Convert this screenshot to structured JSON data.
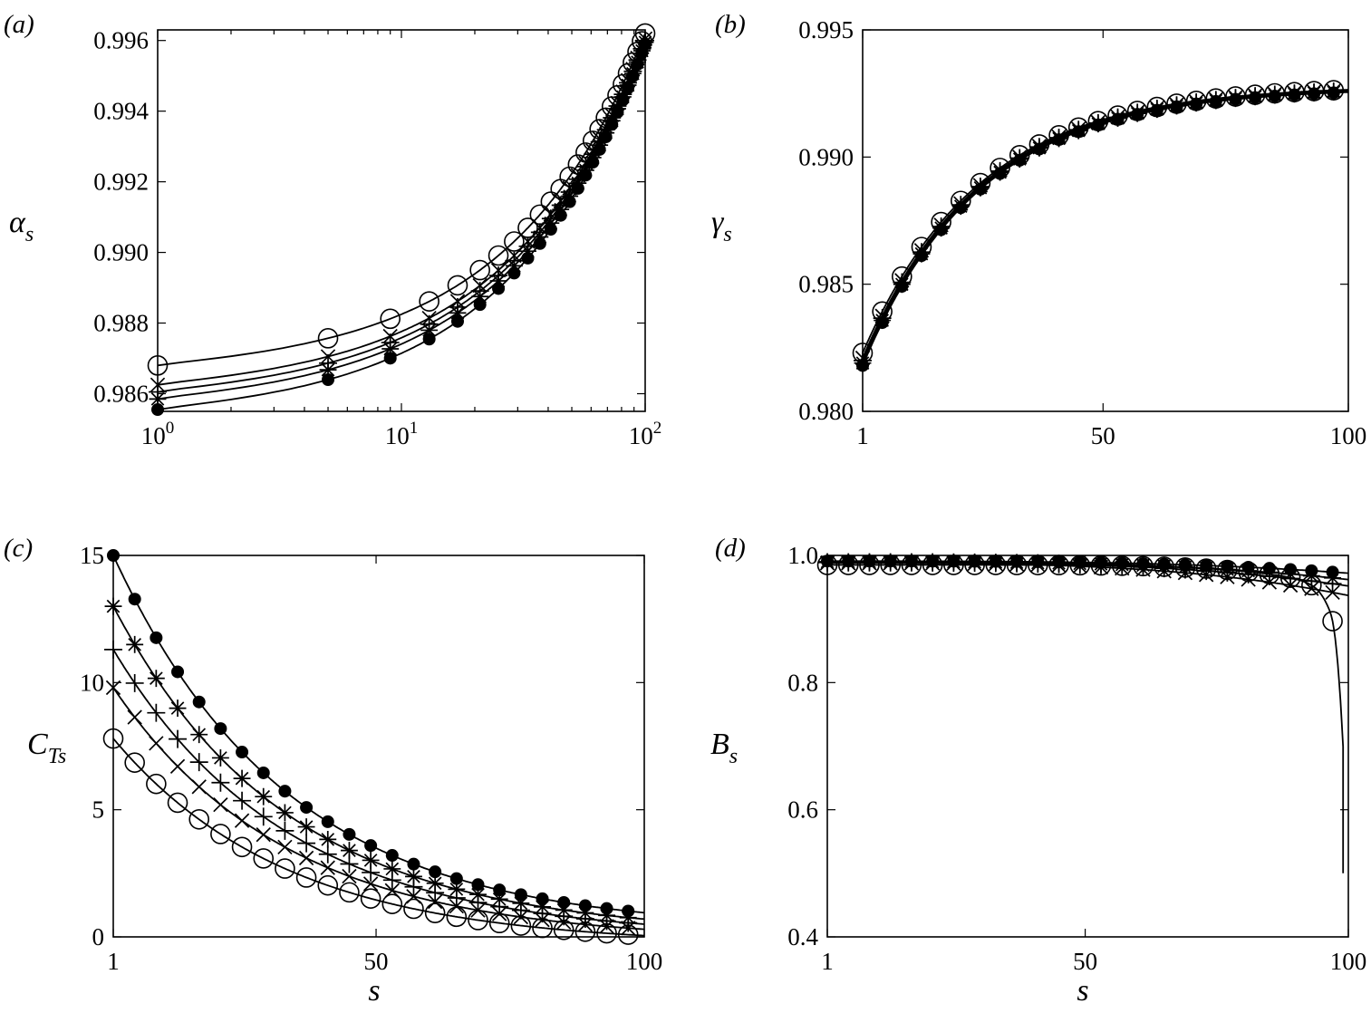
{
  "chart_data": [
    {
      "panel": "a",
      "panel_label": "(a)",
      "type": "line",
      "ylabel": "αs",
      "ylabel_main": "α",
      "ylabel_sub": "s",
      "xlabel": "",
      "x_scale": "log",
      "xlim": [
        1,
        100
      ],
      "ylim": [
        0.9855,
        0.9963
      ],
      "xticks": [
        1,
        10,
        100
      ],
      "xtick_labels": [
        {
          "base": "10",
          "exp": "0"
        },
        {
          "base": "10",
          "exp": "1"
        },
        {
          "base": "10",
          "exp": "2"
        }
      ],
      "yticks": [
        0.986,
        0.988,
        0.99,
        0.992,
        0.994,
        0.996
      ],
      "ytick_labels": [
        "0.986",
        "0.988",
        "0.990",
        "0.992",
        "0.994",
        "0.996"
      ],
      "marker_stride": 4,
      "series": [
        {
          "marker": "circle-open",
          "s0": 0.9868,
          "s100": 0.9962
        },
        {
          "marker": "cross",
          "s0": 0.98625,
          "s100": 0.99605
        },
        {
          "marker": "plus",
          "s0": 0.98605,
          "s100": 0.996
        },
        {
          "marker": "star",
          "s0": 0.98585,
          "s100": 0.99595
        },
        {
          "marker": "circle-solid",
          "s0": 0.98555,
          "s100": 0.9959
        }
      ]
    },
    {
      "panel": "b",
      "panel_label": "(b)",
      "type": "line",
      "ylabel": "γs",
      "ylabel_main": "γ",
      "ylabel_sub": "s",
      "xlabel": "",
      "x_scale": "linear",
      "xlim": [
        1,
        100
      ],
      "ylim": [
        0.98,
        0.995
      ],
      "xticks": [
        1,
        50,
        100
      ],
      "xtick_labels": [
        "1",
        "50",
        "100"
      ],
      "yticks": [
        0.98,
        0.985,
        0.99,
        0.995
      ],
      "ytick_labels": [
        "0.980",
        "0.985",
        "0.990",
        "0.995"
      ],
      "marker_stride": 4,
      "series": [
        {
          "marker": "circle-open",
          "s1": 0.9823,
          "s100": 0.99265
        },
        {
          "marker": "cross",
          "s1": 0.9821,
          "s100": 0.99262
        },
        {
          "marker": "plus",
          "s1": 0.982,
          "s100": 0.9926
        },
        {
          "marker": "star",
          "s1": 0.9819,
          "s100": 0.99258
        },
        {
          "marker": "circle-solid",
          "s1": 0.9818,
          "s100": 0.99255
        }
      ]
    },
    {
      "panel": "c",
      "panel_label": "(c)",
      "type": "line",
      "ylabel": "CTs",
      "ylabel_main": "C",
      "ylabel_sub": "Ts",
      "xlabel": "s",
      "x_scale": "linear",
      "xlim": [
        1,
        100
      ],
      "ylim": [
        0,
        15
      ],
      "xticks": [
        1,
        50,
        100
      ],
      "xtick_labels": [
        "1",
        "50",
        "100"
      ],
      "yticks": [
        0,
        5,
        10,
        15
      ],
      "ytick_labels": [
        "0",
        "5",
        "10",
        "15"
      ],
      "marker_stride": 4,
      "series": [
        {
          "marker": "circle-open",
          "y1": 7.8,
          "y100": 0.05
        },
        {
          "marker": "cross",
          "y1": 9.8,
          "y100": 0.3
        },
        {
          "marker": "plus",
          "y1": 11.3,
          "y100": 0.5
        },
        {
          "marker": "star",
          "y1": 13.0,
          "y100": 0.7
        },
        {
          "marker": "circle-solid",
          "y1": 15.0,
          "y100": 0.95
        }
      ]
    },
    {
      "panel": "d",
      "panel_label": "(d)",
      "type": "line",
      "ylabel": "Bs",
      "ylabel_main": "B",
      "ylabel_sub": "s",
      "xlabel": "s",
      "x_scale": "linear",
      "xlim": [
        1,
        100
      ],
      "ylim": [
        0.4,
        1.0
      ],
      "xticks": [
        1,
        50,
        100
      ],
      "xtick_labels": [
        "1",
        "50",
        "100"
      ],
      "yticks": [
        0.4,
        0.6,
        0.8,
        1.0
      ],
      "ytick_labels": [
        "0.4",
        "0.6",
        "0.8",
        "1.0"
      ],
      "marker_stride": 4,
      "series": [
        {
          "marker": "circle-open",
          "y1": 0.985,
          "rise_to": 0.99,
          "collapse_end": 0.5
        },
        {
          "marker": "cross",
          "y1": 0.988,
          "y100": 0.937
        },
        {
          "marker": "plus",
          "y1": 0.989,
          "y100": 0.952
        },
        {
          "marker": "star",
          "y1": 0.99,
          "y100": 0.962
        },
        {
          "marker": "circle-solid",
          "y1": 0.991,
          "y100": 0.972
        }
      ]
    }
  ]
}
